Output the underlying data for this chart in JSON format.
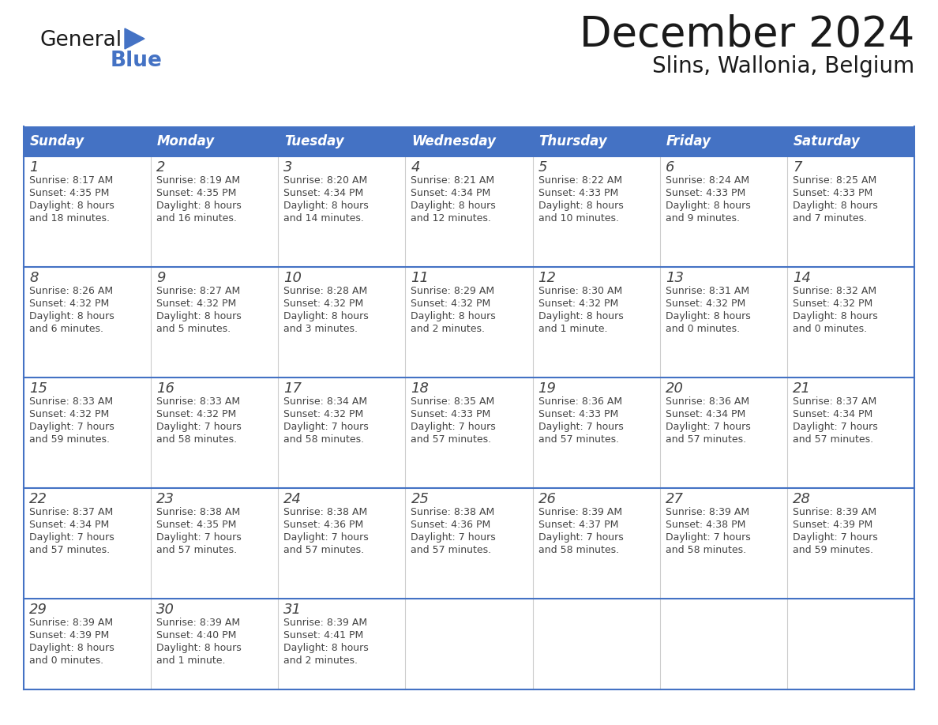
{
  "title": "December 2024",
  "subtitle": "Slins, Wallonia, Belgium",
  "header_color": "#4472C4",
  "header_text_color": "#FFFFFF",
  "border_color": "#4472C4",
  "text_color": "#333333",
  "days_of_week": [
    "Sunday",
    "Monday",
    "Tuesday",
    "Wednesday",
    "Thursday",
    "Friday",
    "Saturday"
  ],
  "weeks": [
    [
      {
        "day": "1",
        "sunrise": "8:17 AM",
        "sunset": "4:35 PM",
        "daylight": "8 hours",
        "daylight2": "and 18 minutes."
      },
      {
        "day": "2",
        "sunrise": "8:19 AM",
        "sunset": "4:35 PM",
        "daylight": "8 hours",
        "daylight2": "and 16 minutes."
      },
      {
        "day": "3",
        "sunrise": "8:20 AM",
        "sunset": "4:34 PM",
        "daylight": "8 hours",
        "daylight2": "and 14 minutes."
      },
      {
        "day": "4",
        "sunrise": "8:21 AM",
        "sunset": "4:34 PM",
        "daylight": "8 hours",
        "daylight2": "and 12 minutes."
      },
      {
        "day": "5",
        "sunrise": "8:22 AM",
        "sunset": "4:33 PM",
        "daylight": "8 hours",
        "daylight2": "and 10 minutes."
      },
      {
        "day": "6",
        "sunrise": "8:24 AM",
        "sunset": "4:33 PM",
        "daylight": "8 hours",
        "daylight2": "and 9 minutes."
      },
      {
        "day": "7",
        "sunrise": "8:25 AM",
        "sunset": "4:33 PM",
        "daylight": "8 hours",
        "daylight2": "and 7 minutes."
      }
    ],
    [
      {
        "day": "8",
        "sunrise": "8:26 AM",
        "sunset": "4:32 PM",
        "daylight": "8 hours",
        "daylight2": "and 6 minutes."
      },
      {
        "day": "9",
        "sunrise": "8:27 AM",
        "sunset": "4:32 PM",
        "daylight": "8 hours",
        "daylight2": "and 5 minutes."
      },
      {
        "day": "10",
        "sunrise": "8:28 AM",
        "sunset": "4:32 PM",
        "daylight": "8 hours",
        "daylight2": "and 3 minutes."
      },
      {
        "day": "11",
        "sunrise": "8:29 AM",
        "sunset": "4:32 PM",
        "daylight": "8 hours",
        "daylight2": "and 2 minutes."
      },
      {
        "day": "12",
        "sunrise": "8:30 AM",
        "sunset": "4:32 PM",
        "daylight": "8 hours",
        "daylight2": "and 1 minute."
      },
      {
        "day": "13",
        "sunrise": "8:31 AM",
        "sunset": "4:32 PM",
        "daylight": "8 hours",
        "daylight2": "and 0 minutes."
      },
      {
        "day": "14",
        "sunrise": "8:32 AM",
        "sunset": "4:32 PM",
        "daylight": "8 hours",
        "daylight2": "and 0 minutes."
      }
    ],
    [
      {
        "day": "15",
        "sunrise": "8:33 AM",
        "sunset": "4:32 PM",
        "daylight": "7 hours",
        "daylight2": "and 59 minutes."
      },
      {
        "day": "16",
        "sunrise": "8:33 AM",
        "sunset": "4:32 PM",
        "daylight": "7 hours",
        "daylight2": "and 58 minutes."
      },
      {
        "day": "17",
        "sunrise": "8:34 AM",
        "sunset": "4:32 PM",
        "daylight": "7 hours",
        "daylight2": "and 58 minutes."
      },
      {
        "day": "18",
        "sunrise": "8:35 AM",
        "sunset": "4:33 PM",
        "daylight": "7 hours",
        "daylight2": "and 57 minutes."
      },
      {
        "day": "19",
        "sunrise": "8:36 AM",
        "sunset": "4:33 PM",
        "daylight": "7 hours",
        "daylight2": "and 57 minutes."
      },
      {
        "day": "20",
        "sunrise": "8:36 AM",
        "sunset": "4:34 PM",
        "daylight": "7 hours",
        "daylight2": "and 57 minutes."
      },
      {
        "day": "21",
        "sunrise": "8:37 AM",
        "sunset": "4:34 PM",
        "daylight": "7 hours",
        "daylight2": "and 57 minutes."
      }
    ],
    [
      {
        "day": "22",
        "sunrise": "8:37 AM",
        "sunset": "4:34 PM",
        "daylight": "7 hours",
        "daylight2": "and 57 minutes."
      },
      {
        "day": "23",
        "sunrise": "8:38 AM",
        "sunset": "4:35 PM",
        "daylight": "7 hours",
        "daylight2": "and 57 minutes."
      },
      {
        "day": "24",
        "sunrise": "8:38 AM",
        "sunset": "4:36 PM",
        "daylight": "7 hours",
        "daylight2": "and 57 minutes."
      },
      {
        "day": "25",
        "sunrise": "8:38 AM",
        "sunset": "4:36 PM",
        "daylight": "7 hours",
        "daylight2": "and 57 minutes."
      },
      {
        "day": "26",
        "sunrise": "8:39 AM",
        "sunset": "4:37 PM",
        "daylight": "7 hours",
        "daylight2": "and 58 minutes."
      },
      {
        "day": "27",
        "sunrise": "8:39 AM",
        "sunset": "4:38 PM",
        "daylight": "7 hours",
        "daylight2": "and 58 minutes."
      },
      {
        "day": "28",
        "sunrise": "8:39 AM",
        "sunset": "4:39 PM",
        "daylight": "7 hours",
        "daylight2": "and 59 minutes."
      }
    ],
    [
      {
        "day": "29",
        "sunrise": "8:39 AM",
        "sunset": "4:39 PM",
        "daylight": "8 hours",
        "daylight2": "and 0 minutes."
      },
      {
        "day": "30",
        "sunrise": "8:39 AM",
        "sunset": "4:40 PM",
        "daylight": "8 hours",
        "daylight2": "and 1 minute."
      },
      {
        "day": "31",
        "sunrise": "8:39 AM",
        "sunset": "4:41 PM",
        "daylight": "8 hours",
        "daylight2": "and 2 minutes."
      },
      null,
      null,
      null,
      null
    ]
  ]
}
